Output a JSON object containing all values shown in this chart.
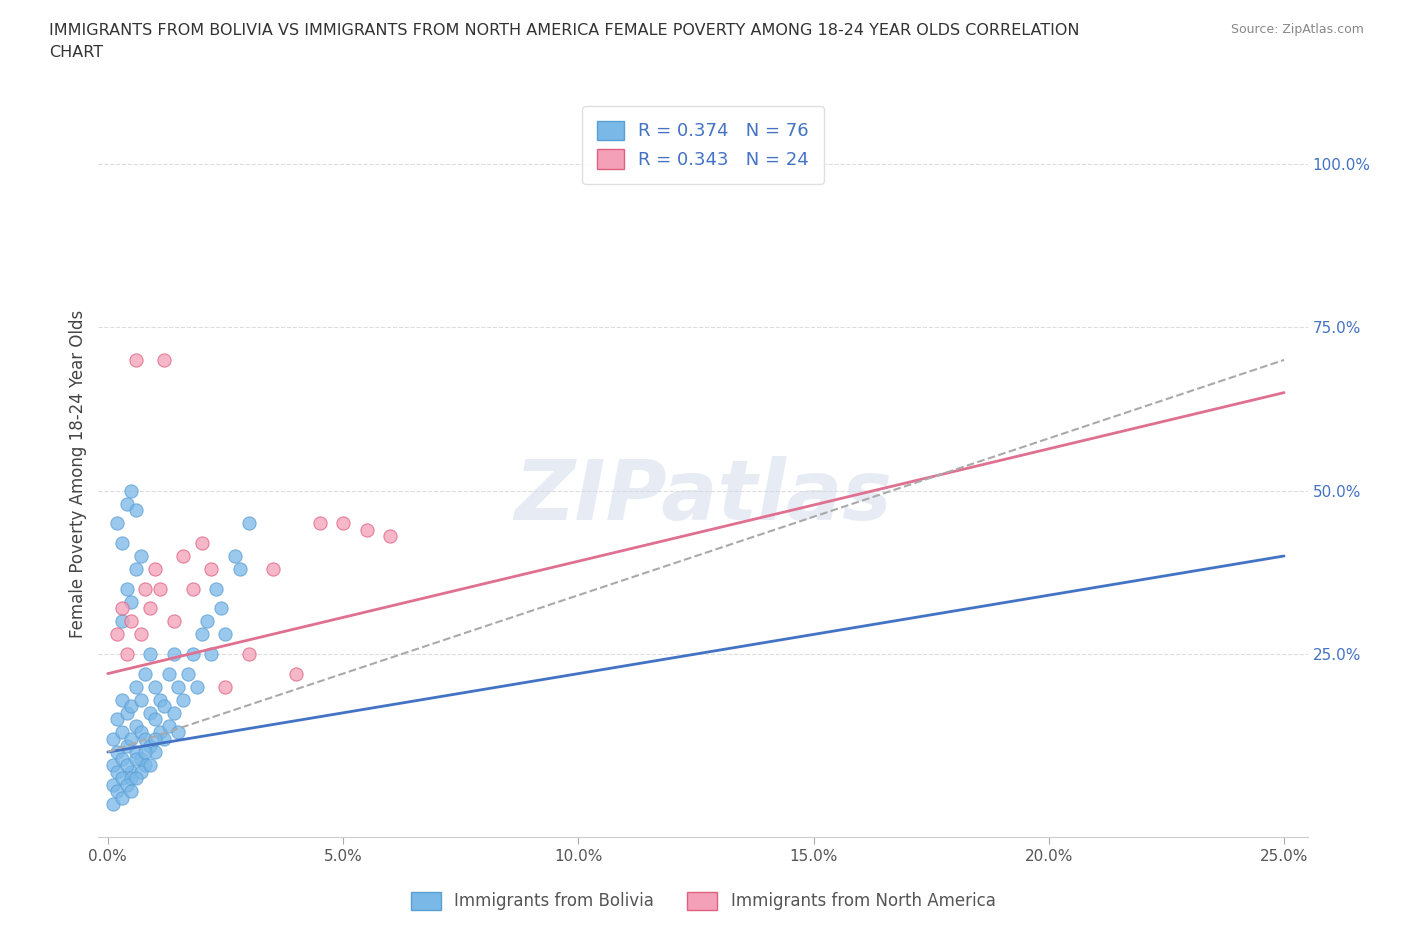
{
  "title_line1": "IMMIGRANTS FROM BOLIVIA VS IMMIGRANTS FROM NORTH AMERICA FEMALE POVERTY AMONG 18-24 YEAR OLDS CORRELATION",
  "title_line2": "CHART",
  "source_text": "Source: ZipAtlas.com",
  "ylabel": "Female Poverty Among 18-24 Year Olds",
  "watermark": "ZIPatlas",
  "xlim": [
    -0.002,
    0.255
  ],
  "ylim": [
    -0.03,
    1.08
  ],
  "bolivia_color": "#7ab8e8",
  "bolivia_edge": "#5a9fd4",
  "north_america_color": "#f4a0b8",
  "north_america_edge": "#e06080",
  "R_bolivia": 0.374,
  "N_bolivia": 76,
  "R_north_america": 0.343,
  "N_north_america": 24,
  "legend_label_bolivia": "Immigrants from Bolivia",
  "legend_label_north_america": "Immigrants from North America",
  "bolivia_line_color": "#4472c4",
  "north_america_line_color": "#e07090",
  "dash_line_color": "#aaaaaa",
  "grid_color": "#dddddd",
  "bolivia_x": [
    0.001,
    0.001,
    0.002,
    0.002,
    0.003,
    0.003,
    0.003,
    0.004,
    0.004,
    0.005,
    0.005,
    0.005,
    0.006,
    0.006,
    0.006,
    0.007,
    0.007,
    0.007,
    0.008,
    0.008,
    0.008,
    0.009,
    0.009,
    0.009,
    0.01,
    0.01,
    0.01,
    0.011,
    0.011,
    0.012,
    0.012,
    0.013,
    0.013,
    0.014,
    0.014,
    0.015,
    0.015,
    0.016,
    0.017,
    0.018,
    0.019,
    0.02,
    0.021,
    0.022,
    0.023,
    0.024,
    0.025,
    0.027,
    0.028,
    0.03,
    0.001,
    0.002,
    0.003,
    0.004,
    0.005,
    0.006,
    0.007,
    0.008,
    0.009,
    0.01,
    0.002,
    0.003,
    0.004,
    0.005,
    0.006,
    0.003,
    0.004,
    0.005,
    0.006,
    0.007,
    0.001,
    0.002,
    0.003,
    0.004,
    0.005,
    0.006
  ],
  "bolivia_y": [
    0.08,
    0.12,
    0.1,
    0.15,
    0.09,
    0.13,
    0.18,
    0.11,
    0.16,
    0.07,
    0.12,
    0.17,
    0.1,
    0.14,
    0.2,
    0.09,
    0.13,
    0.18,
    0.08,
    0.12,
    0.22,
    0.11,
    0.16,
    0.25,
    0.1,
    0.15,
    0.2,
    0.13,
    0.18,
    0.12,
    0.17,
    0.14,
    0.22,
    0.16,
    0.25,
    0.13,
    0.2,
    0.18,
    0.22,
    0.25,
    0.2,
    0.28,
    0.3,
    0.25,
    0.35,
    0.32,
    0.28,
    0.4,
    0.38,
    0.45,
    0.05,
    0.07,
    0.06,
    0.08,
    0.06,
    0.09,
    0.07,
    0.1,
    0.08,
    0.12,
    0.45,
    0.42,
    0.48,
    0.5,
    0.47,
    0.3,
    0.35,
    0.33,
    0.38,
    0.4,
    0.02,
    0.04,
    0.03,
    0.05,
    0.04,
    0.06
  ],
  "north_america_x": [
    0.002,
    0.003,
    0.004,
    0.005,
    0.006,
    0.007,
    0.008,
    0.009,
    0.01,
    0.011,
    0.012,
    0.014,
    0.016,
    0.018,
    0.02,
    0.022,
    0.025,
    0.03,
    0.035,
    0.04,
    0.045,
    0.05,
    0.055,
    0.06
  ],
  "north_america_y": [
    0.28,
    0.32,
    0.25,
    0.3,
    0.7,
    0.28,
    0.35,
    0.32,
    0.38,
    0.35,
    0.7,
    0.3,
    0.4,
    0.35,
    0.42,
    0.38,
    0.2,
    0.25,
    0.38,
    0.22,
    0.45,
    0.45,
    0.44,
    0.43
  ],
  "bolivia_reg": [
    0.0,
    0.25,
    0.1,
    0.4
  ],
  "north_america_reg": [
    0.0,
    0.25,
    0.22,
    0.65
  ],
  "dash_reg": [
    0.0,
    0.25,
    0.1,
    0.7
  ]
}
